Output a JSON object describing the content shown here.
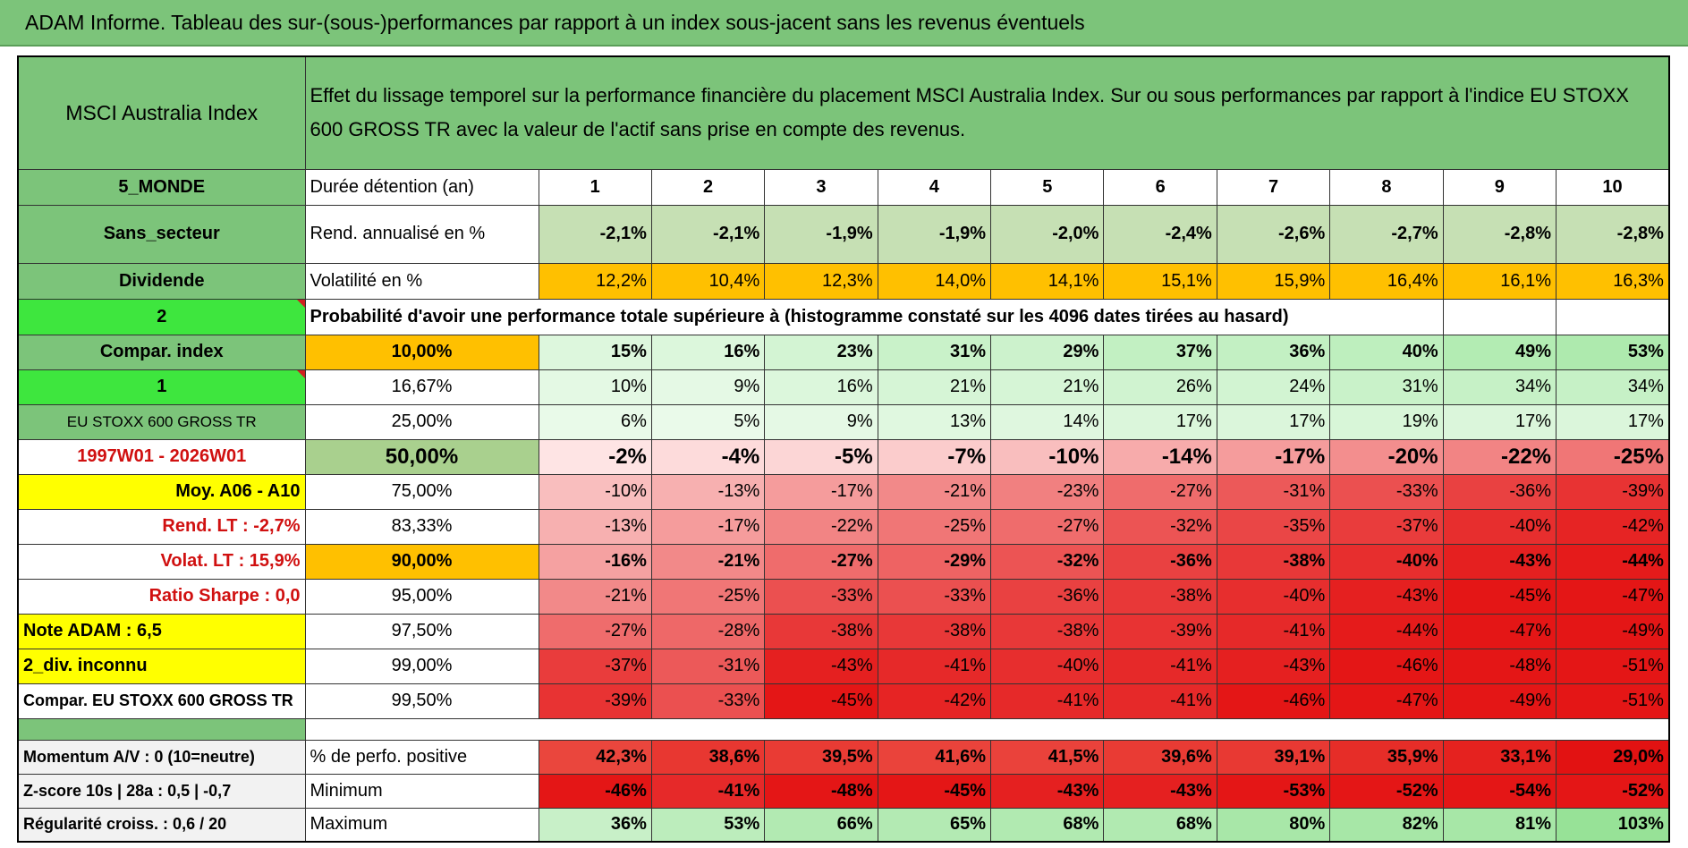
{
  "title": "ADAM Informe. Tableau des sur-(sous-)performances par rapport à un index sous-jacent sans les revenus éventuels",
  "corner": "MSCI Australia Index",
  "description": "Effet du lissage temporel sur la performance financière du placement MSCI Australia Index. Sur ou sous performances par rapport à l'indice EU STOXX 600 GROSS TR avec la valeur de l'actif sans prise en compte des revenus.",
  "rows": [
    {
      "label": "5_MONDE",
      "metric": "Durée détention (an)",
      "values": [
        1,
        2,
        3,
        4,
        5,
        6,
        7,
        8,
        9,
        10
      ]
    },
    {
      "label": "Sans_secteur",
      "metric": "Rend. annualisé en %",
      "values": [
        "-2,1%",
        "-2,1%",
        "-1,9%",
        "-1,9%",
        "-2,0%",
        "-2,4%",
        "-2,6%",
        "-2,7%",
        "-2,8%",
        "-2,8%"
      ]
    },
    {
      "label": "Dividende",
      "metric": "Volatilité en %",
      "values": [
        "12,2%",
        "10,4%",
        "12,3%",
        "14,0%",
        "14,1%",
        "15,1%",
        "15,9%",
        "16,4%",
        "16,1%",
        "16,3%"
      ]
    },
    {
      "label": "2",
      "metric": "Probabilité d'avoir une performance totale supérieure à (histogramme constaté sur les 4096 dates tirées au hasard)"
    },
    {
      "label": "Compar. index",
      "metric": "10,00%",
      "values": [
        "15%",
        "16%",
        "23%",
        "31%",
        "29%",
        "37%",
        "36%",
        "40%",
        "49%",
        "53%"
      ]
    },
    {
      "label": "1",
      "metric": "16,67%",
      "values": [
        "10%",
        "9%",
        "16%",
        "21%",
        "21%",
        "26%",
        "24%",
        "31%",
        "34%",
        "34%"
      ]
    },
    {
      "label": "EU STOXX 600 GROSS TR",
      "metric": "25,00%",
      "values": [
        "6%",
        "5%",
        "9%",
        "13%",
        "14%",
        "17%",
        "17%",
        "19%",
        "17%",
        "17%"
      ]
    },
    {
      "label": "1997W01 - 2026W01",
      "metric": "50,00%",
      "values": [
        "-2%",
        "-4%",
        "-5%",
        "-7%",
        "-10%",
        "-14%",
        "-17%",
        "-20%",
        "-22%",
        "-25%"
      ]
    },
    {
      "label": "Moy. A06 - A10",
      "metric": "75,00%",
      "values": [
        "-10%",
        "-13%",
        "-17%",
        "-21%",
        "-23%",
        "-27%",
        "-31%",
        "-33%",
        "-36%",
        "-39%"
      ]
    },
    {
      "label": "Rend. LT :    -2,7%",
      "metric": "83,33%",
      "values": [
        "-13%",
        "-17%",
        "-22%",
        "-25%",
        "-27%",
        "-32%",
        "-35%",
        "-37%",
        "-40%",
        "-42%"
      ]
    },
    {
      "label": "Volat. LT :   15,9%",
      "metric": "90,00%",
      "values": [
        "-16%",
        "-21%",
        "-27%",
        "-29%",
        "-32%",
        "-36%",
        "-38%",
        "-40%",
        "-43%",
        "-44%"
      ]
    },
    {
      "label": "Ratio Sharpe :    0,0",
      "metric": "95,00%",
      "values": [
        "-21%",
        "-25%",
        "-33%",
        "-33%",
        "-36%",
        "-38%",
        "-40%",
        "-43%",
        "-45%",
        "-47%"
      ]
    },
    {
      "label": "Note ADAM : 6,5",
      "metric": "97,50%",
      "values": [
        "-27%",
        "-28%",
        "-38%",
        "-38%",
        "-38%",
        "-39%",
        "-41%",
        "-44%",
        "-47%",
        "-49%"
      ]
    },
    {
      "label": "2_div. inconnu",
      "metric": "99,00%",
      "values": [
        "-37%",
        "-31%",
        "-43%",
        "-41%",
        "-40%",
        "-41%",
        "-43%",
        "-46%",
        "-48%",
        "-51%"
      ]
    },
    {
      "label": "Compar. EU STOXX 600 GROSS TR",
      "metric": "99,50%",
      "values": [
        "-39%",
        "-33%",
        "-45%",
        "-42%",
        "-41%",
        "-41%",
        "-46%",
        "-47%",
        "-49%",
        "-51%"
      ]
    }
  ],
  "summary_rows": [
    {
      "label": "Momentum A/V : 0 (10=neutre)",
      "metric": "% de perfo. positive",
      "values": [
        "42,3%",
        "38,6%",
        "39,5%",
        "41,6%",
        "41,5%",
        "39,6%",
        "39,1%",
        "35,9%",
        "33,1%",
        "29,0%"
      ]
    },
    {
      "label": "Z-score 10s | 28a : 0,5 | -0,7",
      "metric": "Minimum",
      "values": [
        "-46%",
        "-41%",
        "-48%",
        "-45%",
        "-43%",
        "-43%",
        "-53%",
        "-52%",
        "-54%",
        "-52%"
      ]
    },
    {
      "label": "Régularité croiss. : 0,6 / 20",
      "metric": "Maximum",
      "values": [
        "36%",
        "53%",
        "66%",
        "65%",
        "68%",
        "68%",
        "80%",
        "82%",
        "81%",
        "103%"
      ]
    }
  ]
}
